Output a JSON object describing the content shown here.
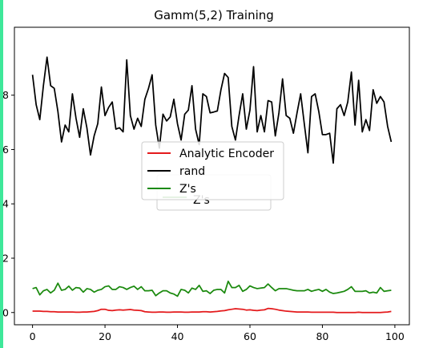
{
  "window": {
    "accent_bar_color": "#3ee89a"
  },
  "chart_data": {
    "type": "line",
    "title": "Gamm(5,2) Training",
    "xlabel": "",
    "ylabel": "",
    "xlim": [
      -5,
      104
    ],
    "ylim": [
      -0.45,
      10.5
    ],
    "xticks": [
      0,
      20,
      40,
      60,
      80,
      100
    ],
    "yticks": [
      0,
      2,
      4,
      6,
      8
    ],
    "ytick_labels": [
      "0",
      "2",
      "4",
      "6",
      "8"
    ],
    "grid": false,
    "legend_position": "center",
    "x": [
      0,
      1,
      2,
      3,
      4,
      5,
      6,
      7,
      8,
      9,
      10,
      11,
      12,
      13,
      14,
      15,
      16,
      17,
      18,
      19,
      20,
      21,
      22,
      23,
      24,
      25,
      26,
      27,
      28,
      29,
      30,
      31,
      32,
      33,
      34,
      35,
      36,
      37,
      38,
      39,
      40,
      41,
      42,
      43,
      44,
      45,
      46,
      47,
      48,
      49,
      50,
      51,
      52,
      53,
      54,
      55,
      56,
      57,
      58,
      59,
      60,
      61,
      62,
      63,
      64,
      65,
      66,
      67,
      68,
      69,
      70,
      71,
      72,
      73,
      74,
      75,
      76,
      77,
      78,
      79,
      80,
      81,
      82,
      83,
      84,
      85,
      86,
      87,
      88,
      89,
      90,
      91,
      92,
      93,
      94,
      95,
      96,
      97,
      98,
      99
    ],
    "series": [
      {
        "name": "Analytic Encoder",
        "color": "#e41a1c",
        "values": [
          0.05,
          0.05,
          0.05,
          0.04,
          0.04,
          0.03,
          0.03,
          0.02,
          0.02,
          0.02,
          0.02,
          0.02,
          0.01,
          0.01,
          0.02,
          0.02,
          0.03,
          0.04,
          0.07,
          0.12,
          0.12,
          0.08,
          0.07,
          0.09,
          0.1,
          0.09,
          0.1,
          0.11,
          0.09,
          0.08,
          0.07,
          0.03,
          0.02,
          0.01,
          0.01,
          0.02,
          0.02,
          0.01,
          0.01,
          0.02,
          0.02,
          0.02,
          0.01,
          0.01,
          0.02,
          0.02,
          0.02,
          0.03,
          0.03,
          0.02,
          0.03,
          0.04,
          0.06,
          0.07,
          0.1,
          0.12,
          0.14,
          0.13,
          0.12,
          0.09,
          0.1,
          0.08,
          0.07,
          0.09,
          0.1,
          0.15,
          0.14,
          0.12,
          0.09,
          0.07,
          0.05,
          0.04,
          0.03,
          0.02,
          0.02,
          0.02,
          0.02,
          0.01,
          0.01,
          0.01,
          0.01,
          0.01,
          0.01,
          0.01,
          0.0,
          0.0,
          0.0,
          0.0,
          0.0,
          0.0,
          0.01,
          0.0,
          0.0,
          0.0,
          0.0,
          0.0,
          0.0,
          0.01,
          0.02,
          0.04
        ]
      },
      {
        "name": "rand",
        "color": "#000000",
        "values": [
          8.75,
          7.65,
          7.1,
          8.35,
          9.4,
          8.35,
          8.25,
          7.4,
          6.28,
          6.9,
          6.65,
          8.05,
          7.15,
          6.45,
          7.5,
          6.8,
          5.8,
          6.5,
          6.95,
          8.3,
          7.25,
          7.55,
          7.75,
          6.75,
          6.8,
          6.65,
          9.3,
          7.25,
          6.75,
          7.15,
          6.85,
          7.85,
          8.25,
          8.75,
          6.9,
          6.05,
          7.3,
          7.05,
          7.2,
          7.85,
          6.95,
          6.35,
          7.3,
          7.45,
          8.35,
          6.75,
          6.18,
          8.05,
          7.95,
          7.35,
          7.38,
          7.42,
          8.2,
          8.8,
          8.65,
          6.85,
          6.35,
          7.25,
          8.05,
          6.75,
          7.45,
          9.05,
          6.65,
          7.25,
          6.65,
          7.8,
          7.75,
          6.5,
          7.35,
          8.6,
          7.25,
          7.15,
          6.6,
          7.35,
          8.05,
          6.95,
          5.88,
          7.95,
          8.05,
          7.4,
          6.55,
          6.55,
          6.6,
          5.5,
          7.5,
          7.65,
          7.25,
          7.75,
          8.85,
          6.9,
          8.55,
          6.65,
          7.1,
          6.7,
          8.2,
          7.7,
          7.95,
          7.75,
          6.85,
          6.28
        ]
      },
      {
        "name": "Z's",
        "color": "#1b8a0e",
        "values": [
          0.88,
          0.92,
          0.65,
          0.8,
          0.85,
          0.72,
          0.82,
          1.08,
          0.82,
          0.85,
          0.97,
          0.82,
          0.92,
          0.9,
          0.75,
          0.88,
          0.85,
          0.75,
          0.82,
          0.85,
          0.95,
          0.98,
          0.85,
          0.85,
          0.95,
          0.92,
          0.85,
          0.92,
          0.97,
          0.85,
          0.95,
          0.8,
          0.8,
          0.82,
          0.62,
          0.72,
          0.8,
          0.8,
          0.72,
          0.68,
          0.6,
          0.85,
          0.82,
          0.72,
          0.9,
          0.85,
          1.0,
          0.78,
          0.8,
          0.7,
          0.82,
          0.85,
          0.85,
          0.72,
          1.15,
          0.92,
          0.92,
          1.0,
          0.78,
          0.85,
          0.98,
          0.92,
          0.88,
          0.9,
          0.92,
          1.05,
          0.92,
          0.8,
          0.88,
          0.88,
          0.88,
          0.85,
          0.82,
          0.8,
          0.8,
          0.8,
          0.85,
          0.78,
          0.82,
          0.85,
          0.78,
          0.85,
          0.75,
          0.7,
          0.72,
          0.75,
          0.78,
          0.85,
          0.95,
          0.78,
          0.78,
          0.78,
          0.8,
          0.72,
          0.75,
          0.72,
          0.92,
          0.78,
          0.8,
          0.82
        ]
      }
    ],
    "ghost_legend_label": "Z's"
  }
}
